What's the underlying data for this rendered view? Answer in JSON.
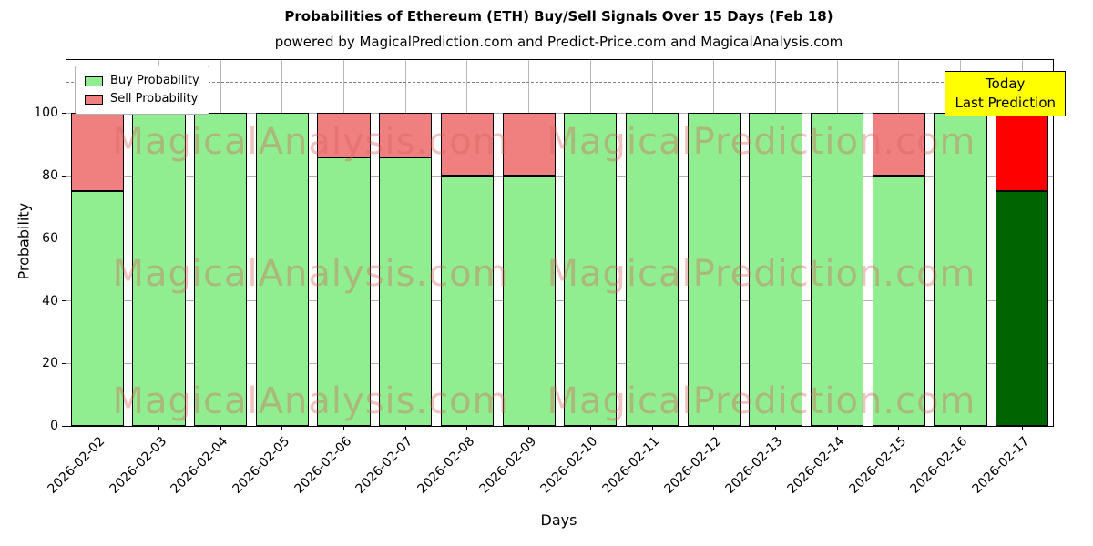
{
  "figure": {
    "title": "Probabilities of Ethereum (ETH) Buy/Sell Signals Over 15 Days (Feb 18)",
    "subtitle": "powered by MagicalPrediction.com and Predict-Price.com and MagicalAnalysis.com"
  },
  "axes": {
    "x_label": "Days",
    "y_label": "Probability",
    "y_ticks": [
      0,
      20,
      40,
      60,
      80,
      100
    ]
  },
  "legend": {
    "items": [
      {
        "label": "Buy Probability",
        "color": "#90ee90"
      },
      {
        "label": "Sell Probability",
        "color": "#f08080"
      }
    ]
  },
  "annotation": {
    "line1": "Today",
    "line2": "Last Prediction",
    "bg": "#ffff00"
  },
  "watermark": {
    "left": "MagicalAnalysis.com",
    "right": "MagicalPrediction.com"
  },
  "chart_data": {
    "type": "bar",
    "stacked": true,
    "title": "Probabilities of Ethereum (ETH) Buy/Sell Signals Over 15 Days (Feb 18)",
    "xlabel": "Days",
    "ylabel": "Probability",
    "ylim": [
      0,
      117
    ],
    "grid": true,
    "dashed_line_y": 110,
    "bar_edge_color": "#000000",
    "categories": [
      "2026-02-02",
      "2026-02-03",
      "2026-02-04",
      "2026-02-05",
      "2026-02-06",
      "2026-02-07",
      "2026-02-08",
      "2026-02-09",
      "2026-02-10",
      "2026-02-11",
      "2026-02-12",
      "2026-02-13",
      "2026-02-14",
      "2026-02-15",
      "2026-02-16",
      "2026-02-17"
    ],
    "series": [
      {
        "name": "Buy Probability",
        "color": "#90ee90",
        "values": [
          75,
          100,
          100,
          100,
          86,
          86,
          80,
          80,
          100,
          100,
          100,
          100,
          100,
          80,
          100,
          75
        ]
      },
      {
        "name": "Sell Probability",
        "color": "#f08080",
        "values": [
          25,
          0,
          0,
          0,
          14,
          14,
          20,
          20,
          0,
          0,
          0,
          0,
          0,
          20,
          0,
          25
        ]
      }
    ],
    "today_colors": {
      "buy": "#006400",
      "sell": "#ff0000"
    },
    "legend_position": "upper left"
  }
}
